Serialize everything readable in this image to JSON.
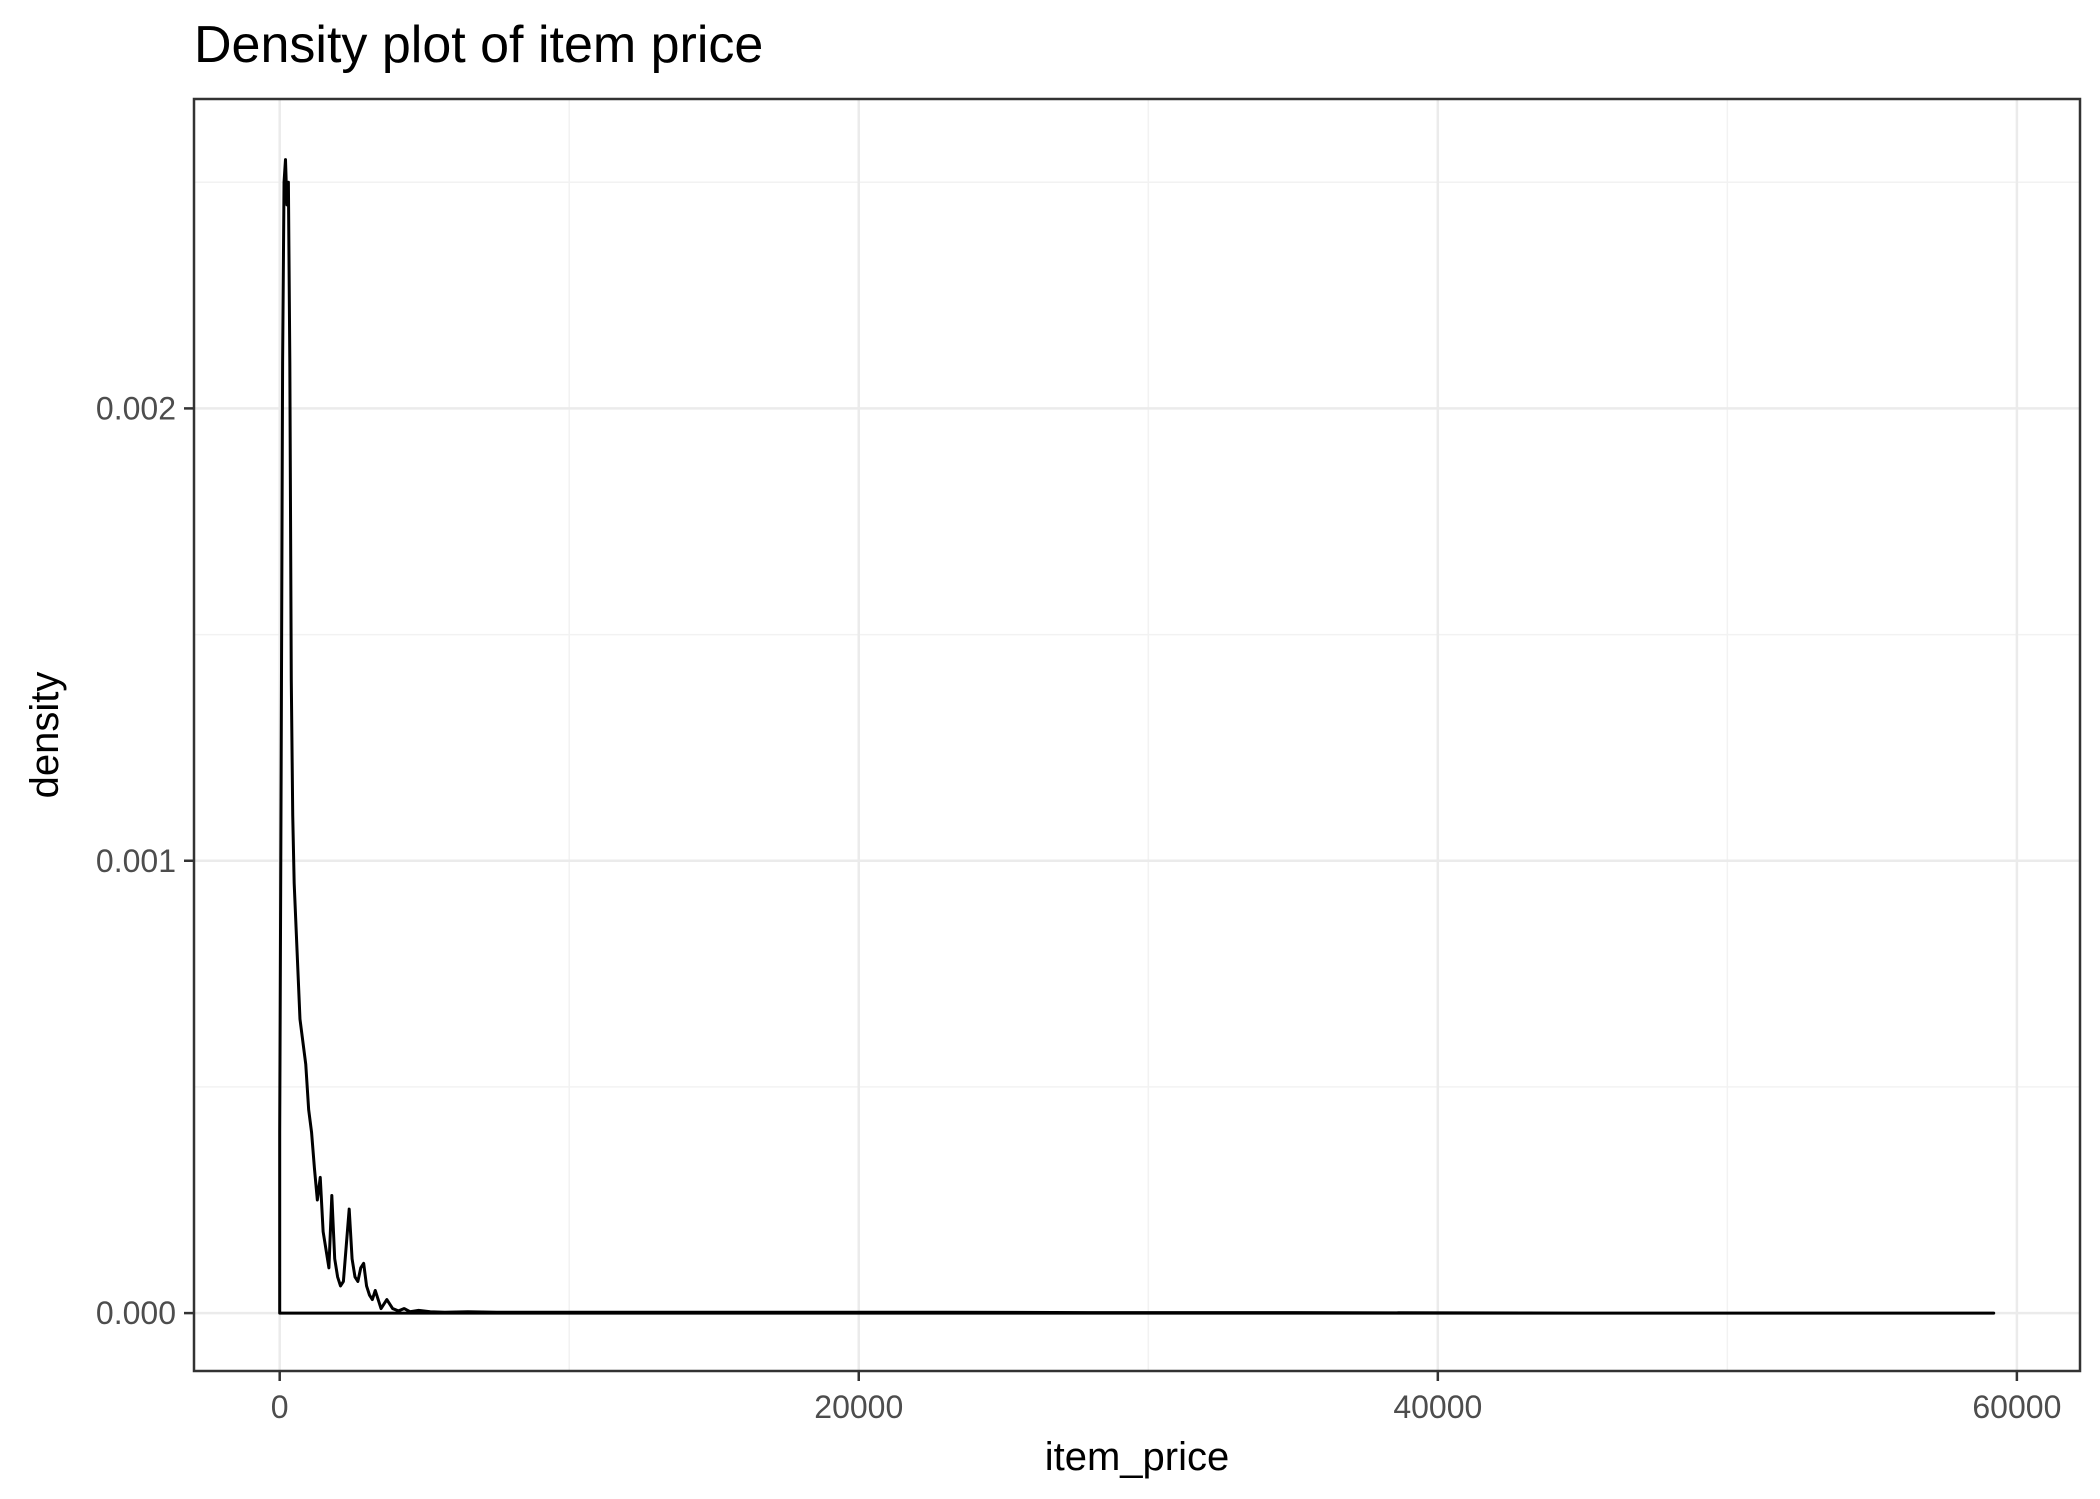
{
  "chart_data": {
    "type": "line",
    "title": "Density plot of item price",
    "xlabel": "item_price",
    "ylabel": "density",
    "xlim": [
      -2960,
      62180
    ],
    "ylim": [
      -0.000128,
      0.002684
    ],
    "x_ticks": [
      0,
      20000,
      40000,
      60000
    ],
    "x_tick_labels": [
      "0",
      "20000",
      "40000",
      "60000"
    ],
    "x_minor_ticks": [
      10000,
      30000,
      50000
    ],
    "y_ticks": [
      0.0,
      0.001,
      0.002
    ],
    "y_tick_labels": [
      "0.000",
      "0.001",
      "0.002"
    ],
    "y_minor_ticks": [
      0.0005,
      0.0015,
      0.0025
    ],
    "grid": true,
    "legend": "none",
    "colors": {
      "line": "#000000",
      "grid_major": "#ebebeb",
      "grid_minor": "#f2f2f2",
      "panel_border": "#333333",
      "tick_text": "#4d4d4d"
    },
    "series": [
      {
        "x": [
          0,
          0,
          50,
          100,
          150,
          200,
          250,
          300,
          350,
          400,
          450,
          500,
          600,
          700,
          800,
          900,
          1000,
          1100,
          1200,
          1300,
          1400,
          1500,
          1600,
          1700,
          1800,
          1900,
          2000,
          2100,
          2200,
          2300,
          2400,
          2500,
          2600,
          2700,
          2800,
          2900,
          3000,
          3100,
          3200,
          3300,
          3500,
          3700,
          3900,
          4100,
          4300,
          4500,
          4800,
          5200,
          5700,
          6500,
          7500,
          10000,
          14000,
          18000,
          23000,
          28000,
          35000,
          45000,
          59200
        ],
        "y": [
          0,
          0.0004,
          0.0012,
          0.0021,
          0.0025,
          0.00255,
          0.00245,
          0.0025,
          0.0021,
          0.0014,
          0.0011,
          0.00095,
          0.0008,
          0.00065,
          0.0006,
          0.00055,
          0.00045,
          0.0004,
          0.00032,
          0.00025,
          0.0003,
          0.00018,
          0.00014,
          0.0001,
          0.00026,
          0.00012,
          8e-05,
          6e-05,
          7e-05,
          0.00015,
          0.00023,
          0.00012,
          8e-05,
          7e-05,
          0.0001,
          0.00011,
          6e-05,
          4e-05,
          3e-05,
          5e-05,
          1e-05,
          3e-05,
          1e-05,
          5e-06,
          1e-05,
          3e-06,
          6e-06,
          3e-06,
          2e-06,
          3e-06,
          2e-06,
          2e-06,
          2e-06,
          2e-06,
          2e-06,
          1e-06,
          1e-06,
          0,
          0
        ]
      }
    ]
  }
}
